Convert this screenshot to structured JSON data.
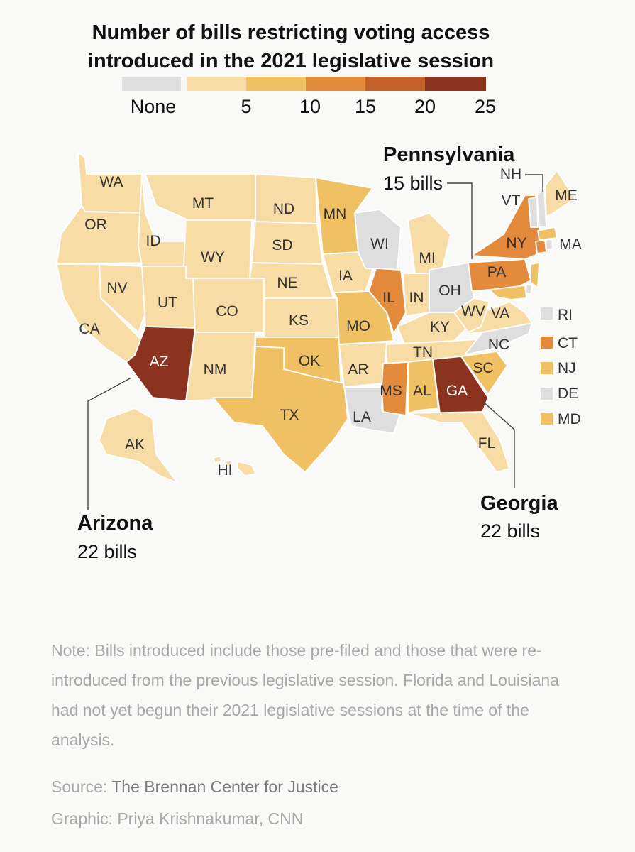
{
  "title_line1": "Number of bills restricting voting access",
  "title_line2": "introduced in the 2021 legislative session",
  "legend": [
    {
      "label": "None",
      "color": "#dedede"
    },
    {
      "label": "5",
      "color": "#f7dca6"
    },
    {
      "label": "10",
      "color": "#f0c064"
    },
    {
      "label": "15",
      "color": "#e38a3c"
    },
    {
      "label": "20",
      "color": "#c4622c"
    },
    {
      "label": "25",
      "color": "#8c3320"
    }
  ],
  "states": {
    "WA": "WA",
    "OR": "OR",
    "CA": "CA",
    "ID": "ID",
    "NV": "NV",
    "MT": "MT",
    "WY": "WY",
    "UT": "UT",
    "CO": "CO",
    "AZ": "AZ",
    "NM": "NM",
    "ND": "ND",
    "SD": "SD",
    "NE": "NE",
    "KS": "KS",
    "OK": "OK",
    "TX": "TX",
    "MN": "MN",
    "IA": "IA",
    "MO": "MO",
    "AR": "AR",
    "LA": "LA",
    "WI": "WI",
    "IL": "IL",
    "MI": "MI",
    "IN": "IN",
    "OH": "OH",
    "KY": "KY",
    "TN": "TN",
    "MS": "MS",
    "AL": "AL",
    "GA": "GA",
    "FL": "FL",
    "SC": "SC",
    "NC": "NC",
    "VA": "VA",
    "WV": "WV",
    "PA": "PA",
    "NY": "NY",
    "VT": "VT",
    "NH": "NH",
    "ME": "ME",
    "MA": "MA",
    "AK": "AK",
    "HI": "HI"
  },
  "small_states": [
    "RI",
    "CT",
    "NJ",
    "DE",
    "MD"
  ],
  "callouts": {
    "pennsylvania": {
      "name": "Pennsylvania",
      "count": "15 bills"
    },
    "arizona": {
      "name": "Arizona",
      "count": "22 bills"
    },
    "georgia": {
      "name": "Georgia",
      "count": "22 bills"
    }
  },
  "note": "Note: Bills introduced include those pre-filed and those that were re-introduced from the previous legislative session. Florida and Louisiana had not yet begun their 2021 legislative sessions at the time of the analysis.",
  "source_label": "Source:",
  "source_value": "The Brennan Center for Justice",
  "credit": "Graphic: Priya Krishnakumar, CNN"
}
